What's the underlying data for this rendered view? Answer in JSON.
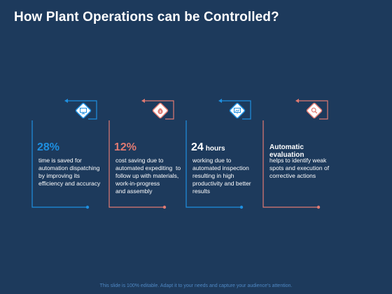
{
  "title": "How Plant Operations can be Controlled?",
  "footer": "This slide is 100% editable. Adapt it to your needs and capture your audience's attention.",
  "colors": {
    "blue": "#1e8fe0",
    "coral": "#e07a72",
    "background": "#1d3a5c"
  },
  "cards": [
    {
      "value": "28%",
      "unit": "",
      "desc_lines": [
        "time is saved for",
        "automation dispatching",
        "by improving its",
        "efficiency and accuracy"
      ],
      "icon": "monitor-icon",
      "accent": "blue"
    },
    {
      "value": "12%",
      "unit": "",
      "desc_lines": [
        "cost saving due to",
        "automated expediting  to",
        "follow up with materials,",
        "work-in-progress",
        "and assembly"
      ],
      "icon": "money-bag-icon",
      "accent": "coral"
    },
    {
      "value": "24",
      "unit": "hours",
      "desc_lines": [
        "working due to",
        "automated inspection",
        "resulting in high",
        "productivity and better",
        "results"
      ],
      "icon": "presentation-board-icon",
      "accent": "blue"
    },
    {
      "heading": "Automatic evaluation",
      "desc_lines": [
        "helps to identify weak",
        "spots and execution of",
        "corrective actions"
      ],
      "icon": "magnifier-icon",
      "accent": "coral"
    }
  ]
}
